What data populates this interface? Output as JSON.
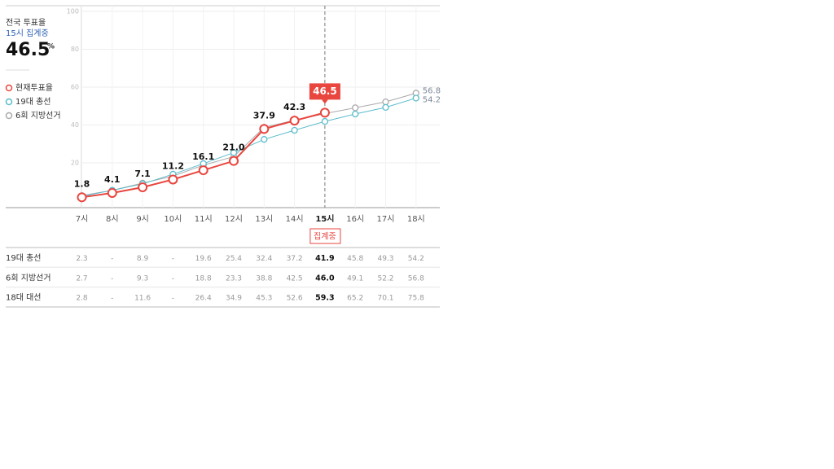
{
  "headline": {
    "title": "전국 투표율",
    "status": "15시 집계중",
    "unit": "%"
  },
  "chart_data": {
    "type": "line",
    "categories": [
      "7시",
      "8시",
      "9시",
      "10시",
      "11시",
      "12시",
      "13시",
      "14시",
      "15시",
      "16시",
      "17시",
      "18시"
    ],
    "ylim": [
      0,
      100
    ],
    "yticks": [
      20,
      40,
      60,
      80,
      100
    ],
    "grid": true,
    "status_tag": "집계중",
    "series": [
      {
        "name": "현재투표율",
        "color": "#e8463e",
        "values": [
          1.8,
          4.1,
          7.1,
          11.2,
          16.1,
          21.0,
          37.9,
          42.3,
          46.5,
          null,
          null,
          null
        ],
        "value_labels": [
          "1.8",
          "4.1",
          "7.1",
          "11.2",
          "16.1",
          "21.0",
          "37.9",
          "42.3",
          "46.5",
          null,
          null,
          null
        ]
      },
      {
        "name": "19대 총선",
        "color": "#5bbccc",
        "values": [
          2.3,
          5.5,
          8.9,
          14,
          19.6,
          25.4,
          32.4,
          37.2,
          41.9,
          45.8,
          49.3,
          54.2
        ]
      },
      {
        "name": "6회 지방선거",
        "color": "#aaaaaa",
        "values": [
          2.7,
          5.5,
          9.3,
          13,
          18.8,
          23.3,
          38.8,
          42.5,
          46.0,
          49.1,
          52.2,
          56.8
        ]
      }
    ]
  },
  "table": {
    "rows": [
      [
        "19대 총선",
        "2.3",
        "-",
        "8.9",
        "-",
        "19.6",
        "25.4",
        "32.4",
        "37.2",
        "41.9",
        "45.8",
        "49.3",
        "54.2"
      ],
      [
        "6회 지방선거",
        "2.7",
        "-",
        "9.3",
        "-",
        "18.8",
        "23.3",
        "38.8",
        "42.5",
        "46.0",
        "49.1",
        "52.2",
        "56.8"
      ],
      [
        "18대 대선",
        "2.8",
        "-",
        "11.6",
        "-",
        "26.4",
        "34.9",
        "45.3",
        "52.6",
        "59.3",
        "65.2",
        "70.1",
        "75.8"
      ]
    ]
  }
}
